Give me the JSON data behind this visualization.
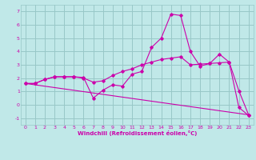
{
  "xlabel": "Windchill (Refroidissement éolien,°C)",
  "xlim": [
    -0.5,
    23.5
  ],
  "ylim": [
    -1.5,
    7.5
  ],
  "xticks": [
    0,
    1,
    2,
    3,
    4,
    5,
    6,
    7,
    8,
    9,
    10,
    11,
    12,
    13,
    14,
    15,
    16,
    17,
    18,
    19,
    20,
    21,
    22,
    23
  ],
  "yticks": [
    -1,
    0,
    1,
    2,
    3,
    4,
    5,
    6,
    7
  ],
  "bg_color": "#c0e8e8",
  "grid_color": "#98c8c8",
  "line_color": "#cc00aa",
  "line1_x": [
    0,
    1,
    2,
    3,
    4,
    5,
    6,
    7,
    8,
    9,
    10,
    11,
    12,
    13,
    14,
    15,
    16,
    17,
    18,
    19,
    20,
    21,
    22,
    23
  ],
  "line1_y": [
    1.6,
    1.6,
    1.9,
    2.1,
    2.1,
    2.1,
    2.05,
    0.5,
    1.1,
    1.5,
    1.4,
    2.3,
    2.5,
    4.3,
    5.0,
    6.8,
    6.7,
    4.0,
    2.9,
    3.1,
    3.8,
    3.2,
    -0.2,
    -0.8
  ],
  "line2_x": [
    0,
    1,
    2,
    3,
    4,
    5,
    6,
    7,
    8,
    9,
    10,
    11,
    12,
    13,
    14,
    15,
    16,
    17,
    18,
    19,
    20,
    21,
    22,
    23
  ],
  "line2_y": [
    1.6,
    1.6,
    1.9,
    2.1,
    2.1,
    2.1,
    2.0,
    1.7,
    1.8,
    2.2,
    2.5,
    2.7,
    3.0,
    3.2,
    3.4,
    3.5,
    3.6,
    3.0,
    3.05,
    3.1,
    3.15,
    3.2,
    1.05,
    -0.75
  ],
  "line3_x": [
    0,
    23
  ],
  "line3_y": [
    1.6,
    -0.75
  ]
}
